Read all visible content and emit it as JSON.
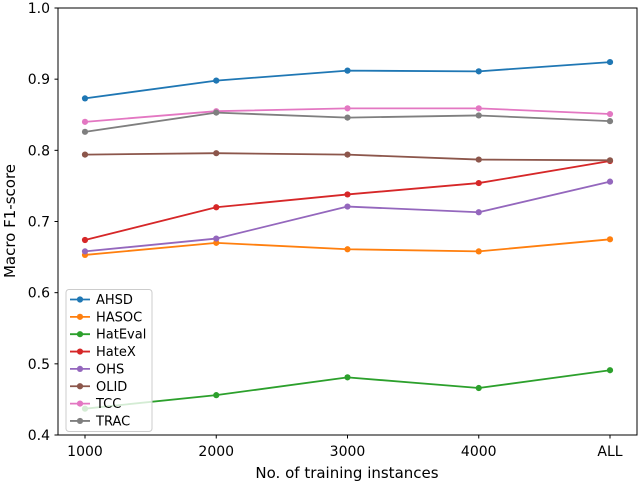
{
  "chart_data": {
    "type": "line",
    "title": "",
    "xlabel": "No. of training instances",
    "ylabel": "Macro F1-score",
    "categories": [
      "1000",
      "2000",
      "3000",
      "4000",
      "ALL"
    ],
    "y_ticks": [
      1.0,
      0.9,
      0.8,
      0.7,
      0.6,
      0.5,
      0.4
    ],
    "ylim": [
      0.4,
      1.0
    ],
    "grid": false,
    "legend_position": "lower-left",
    "marker": "circle",
    "series": [
      {
        "name": "AHSD",
        "color": "#1f77b4",
        "values": [
          0.873,
          0.898,
          0.912,
          0.911,
          0.924
        ]
      },
      {
        "name": "HASOC",
        "color": "#ff7f0e",
        "values": [
          0.653,
          0.67,
          0.661,
          0.658,
          0.675
        ]
      },
      {
        "name": "HatEval",
        "color": "#2ca02c",
        "values": [
          0.437,
          0.456,
          0.481,
          0.466,
          0.491
        ]
      },
      {
        "name": "HateX",
        "color": "#d62728",
        "values": [
          0.674,
          0.72,
          0.738,
          0.754,
          0.785
        ]
      },
      {
        "name": "OHS",
        "color": "#9467bd",
        "values": [
          0.658,
          0.676,
          0.721,
          0.713,
          0.756
        ]
      },
      {
        "name": "OLID",
        "color": "#8c564b",
        "values": [
          0.794,
          0.796,
          0.794,
          0.787,
          0.786
        ]
      },
      {
        "name": "TCC",
        "color": "#e377c2",
        "values": [
          0.84,
          0.855,
          0.859,
          0.859,
          0.851
        ]
      },
      {
        "name": "TRAC",
        "color": "#7f7f7f",
        "values": [
          0.826,
          0.853,
          0.846,
          0.849,
          0.841
        ]
      }
    ],
    "axis_color": "#000000",
    "legend_border_color": "#cccccc"
  }
}
